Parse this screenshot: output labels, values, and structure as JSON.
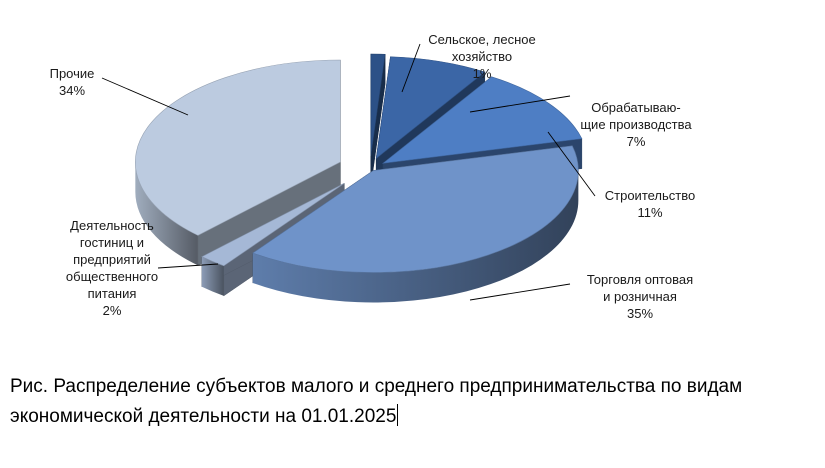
{
  "chart_data": {
    "type": "pie",
    "title": "",
    "slices": [
      {
        "label": [
          "Сельское, лесное",
          "хозяйство",
          "1%"
        ],
        "value": 1,
        "color": "#2c5187"
      },
      {
        "label": [
          "Обрабатываю-",
          "щие производства",
          "7%"
        ],
        "value": 7,
        "color": "#3b66a6"
      },
      {
        "label": [
          "Строительство",
          "11%"
        ],
        "value": 11,
        "color": "#4e7ec4"
      },
      {
        "label": [
          "Торговля оптовая",
          "и розничная",
          "35%"
        ],
        "value": 35,
        "color": "#6f93c9"
      },
      {
        "label": [
          "Деятельность",
          "гостиниц и",
          "предприятий",
          "общественного",
          "питания",
          "2%"
        ],
        "value": 2,
        "color": "#a5b8d6"
      },
      {
        "label": [
          "Прочие",
          "34%"
        ],
        "value": 34,
        "color": "#bccbe0"
      }
    ],
    "legend": "none"
  },
  "caption": {
    "line1": "Рис. Распределение субъектов малого и среднего предпринимательства по видам",
    "line2": "экономической деятельности на 01.01.2025"
  }
}
